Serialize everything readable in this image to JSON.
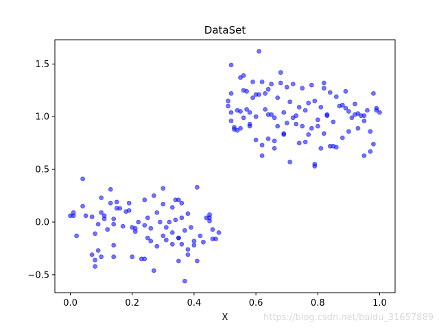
{
  "chart_data": {
    "type": "scatter",
    "title": "DataSet",
    "xlabel": "X",
    "ylabel": "",
    "xlim": [
      -0.05,
      1.05
    ],
    "ylim": [
      -0.67,
      1.73
    ],
    "x_ticks": [
      0.0,
      0.2,
      0.4,
      0.6,
      0.8,
      1.0
    ],
    "x_tick_labels": [
      "0.0",
      "0.2",
      "0.4",
      "0.6",
      "0.8",
      "1.0"
    ],
    "y_ticks": [
      -0.5,
      0.0,
      0.5,
      1.0,
      1.5
    ],
    "y_tick_labels": [
      "−0.5",
      "0.0",
      "0.5",
      "1.0",
      "1.5"
    ],
    "grid": false,
    "marker_color": "#0000ff",
    "marker_alpha": 0.55,
    "series": [
      {
        "points": [
          [
            0.0,
            0.06
          ],
          [
            0.01,
            0.09
          ],
          [
            0.01,
            0.06
          ],
          [
            0.02,
            -0.13
          ],
          [
            0.04,
            0.41
          ],
          [
            0.04,
            0.15
          ],
          [
            0.05,
            0.06
          ],
          [
            0.07,
            0.05
          ],
          [
            0.07,
            -0.31
          ],
          [
            0.08,
            -0.11
          ],
          [
            0.08,
            -0.36
          ],
          [
            0.08,
            -0.42
          ],
          [
            0.09,
            -0.27
          ],
          [
            0.09,
            -0.02
          ],
          [
            0.1,
            0.09
          ],
          [
            0.1,
            0.23
          ],
          [
            0.1,
            -0.33
          ],
          [
            0.11,
            0.06
          ],
          [
            0.11,
            0.03
          ],
          [
            0.12,
            -0.07
          ],
          [
            0.13,
            0.31
          ],
          [
            0.13,
            0.18
          ],
          [
            0.14,
            -0.33
          ],
          [
            0.14,
            -0.22
          ],
          [
            0.14,
            -0.02
          ],
          [
            0.14,
            0.03
          ],
          [
            0.15,
            0.19
          ],
          [
            0.15,
            0.13
          ],
          [
            0.16,
            0.13
          ],
          [
            0.17,
            -0.04
          ],
          [
            0.18,
            0.1
          ],
          [
            0.19,
            0.18
          ],
          [
            0.19,
            0.11
          ],
          [
            0.2,
            -0.33
          ],
          [
            0.2,
            -0.05
          ],
          [
            0.21,
            -0.06
          ],
          [
            0.21,
            -0.09
          ],
          [
            0.22,
            0.0
          ],
          [
            0.23,
            -0.35
          ],
          [
            0.24,
            -0.35
          ],
          [
            0.24,
            0.21
          ],
          [
            0.24,
            -0.03
          ],
          [
            0.25,
            0.04
          ],
          [
            0.25,
            -0.15
          ],
          [
            0.26,
            -0.06
          ],
          [
            0.26,
            -0.18
          ],
          [
            0.27,
            0.25
          ],
          [
            0.27,
            -0.46
          ],
          [
            0.28,
            0.09
          ],
          [
            0.28,
            -0.23
          ],
          [
            0.29,
            0.0
          ],
          [
            0.3,
            0.32
          ],
          [
            0.3,
            0.17
          ],
          [
            0.3,
            -0.13
          ],
          [
            0.31,
            -0.05
          ],
          [
            0.31,
            -0.17
          ],
          [
            0.32,
            0.0
          ],
          [
            0.33,
            -0.21
          ],
          [
            0.33,
            -0.1
          ],
          [
            0.33,
            0.14
          ],
          [
            0.34,
            0.02
          ],
          [
            0.34,
            0.21
          ],
          [
            0.35,
            0.21
          ],
          [
            0.35,
            -0.15
          ],
          [
            0.35,
            -0.37
          ],
          [
            0.35,
            -0.15
          ],
          [
            0.36,
            0.18
          ],
          [
            0.36,
            0.04
          ],
          [
            0.36,
            -0.21
          ],
          [
            0.37,
            -0.56
          ],
          [
            0.37,
            -0.08
          ],
          [
            0.38,
            -0.26
          ],
          [
            0.38,
            -0.31
          ],
          [
            0.38,
            0.08
          ],
          [
            0.39,
            -0.05
          ],
          [
            0.4,
            -0.22
          ],
          [
            0.4,
            -0.18
          ],
          [
            0.41,
            0.33
          ],
          [
            0.41,
            -0.37
          ],
          [
            0.42,
            -0.13
          ],
          [
            0.43,
            -0.19
          ],
          [
            0.44,
            0.04
          ],
          [
            0.45,
            0.04
          ],
          [
            0.45,
            0.07
          ],
          [
            0.45,
            0.01
          ],
          [
            0.46,
            -0.07
          ],
          [
            0.46,
            -0.16
          ],
          [
            0.47,
            -0.16
          ],
          [
            0.48,
            -0.1
          ]
        ]
      },
      {
        "points": [
          [
            0.51,
            1.1
          ],
          [
            0.51,
            1.15
          ],
          [
            0.52,
            1.49
          ],
          [
            0.52,
            1.22
          ],
          [
            0.52,
            1.04
          ],
          [
            0.52,
            0.96
          ],
          [
            0.53,
            0.88
          ],
          [
            0.53,
            0.9
          ],
          [
            0.54,
            1.06
          ],
          [
            0.54,
            0.87
          ],
          [
            0.55,
            0.89
          ],
          [
            0.55,
            1.37
          ],
          [
            0.55,
            1.05
          ],
          [
            0.56,
            1.39
          ],
          [
            0.56,
            1.25
          ],
          [
            0.56,
            0.99
          ],
          [
            0.57,
            1.07
          ],
          [
            0.57,
            1.24
          ],
          [
            0.58,
            0.91
          ],
          [
            0.58,
            1.04
          ],
          [
            0.58,
            0.93
          ],
          [
            0.59,
            1.33
          ],
          [
            0.59,
            1.18
          ],
          [
            0.6,
            1.0
          ],
          [
            0.6,
            1.21
          ],
          [
            0.6,
            0.78
          ],
          [
            0.61,
            1.21
          ],
          [
            0.61,
            1.62
          ],
          [
            0.62,
            1.33
          ],
          [
            0.62,
            0.73
          ],
          [
            0.62,
            0.63
          ],
          [
            0.63,
            1.07
          ],
          [
            0.63,
            1.22
          ],
          [
            0.64,
            1.26
          ],
          [
            0.64,
            1.02
          ],
          [
            0.64,
            0.79
          ],
          [
            0.65,
            1.31
          ],
          [
            0.65,
            1.02
          ],
          [
            0.66,
            0.99
          ],
          [
            0.66,
            0.7
          ],
          [
            0.66,
            0.77
          ],
          [
            0.67,
            0.91
          ],
          [
            0.67,
            1.18
          ],
          [
            0.68,
            1.32
          ],
          [
            0.68,
            1.42
          ],
          [
            0.69,
            0.83
          ],
          [
            0.69,
            0.84
          ],
          [
            0.69,
            1.04
          ],
          [
            0.7,
            1.28
          ],
          [
            0.7,
            0.94
          ],
          [
            0.71,
            0.57
          ],
          [
            0.71,
            1.14
          ],
          [
            0.72,
            1.31
          ],
          [
            0.72,
            0.99
          ],
          [
            0.73,
            1.01
          ],
          [
            0.73,
            0.93
          ],
          [
            0.74,
            1.09
          ],
          [
            0.74,
            0.75
          ],
          [
            0.75,
            0.91
          ],
          [
            0.75,
            1.27
          ],
          [
            0.76,
            0.76
          ],
          [
            0.76,
            1.06
          ],
          [
            0.77,
            1.13
          ],
          [
            0.77,
            0.83
          ],
          [
            0.78,
            0.89
          ],
          [
            0.78,
            1.3
          ],
          [
            0.79,
            1.15
          ],
          [
            0.79,
            0.55
          ],
          [
            0.79,
            0.53
          ],
          [
            0.8,
            0.97
          ],
          [
            0.8,
            0.91
          ],
          [
            0.81,
            0.7
          ],
          [
            0.81,
            1.09
          ],
          [
            0.82,
            1.32
          ],
          [
            0.82,
            1.27
          ],
          [
            0.82,
            0.84
          ],
          [
            0.83,
            1.01
          ],
          [
            0.83,
            1.02
          ],
          [
            0.84,
            1.23
          ],
          [
            0.84,
            0.72
          ],
          [
            0.85,
            0.72
          ],
          [
            0.85,
            0.95
          ],
          [
            0.86,
            1.19
          ],
          [
            0.86,
            0.71
          ],
          [
            0.87,
            1.1
          ],
          [
            0.88,
            1.11
          ],
          [
            0.88,
            0.8
          ],
          [
            0.89,
            1.08
          ],
          [
            0.89,
            1.24
          ],
          [
            0.9,
            0.86
          ],
          [
            0.9,
            1.05
          ],
          [
            0.91,
            0.99
          ],
          [
            0.92,
            1.02
          ],
          [
            0.92,
            1.12
          ],
          [
            0.93,
            0.89
          ],
          [
            0.93,
            1.03
          ],
          [
            0.94,
            1.01
          ],
          [
            0.95,
            1.01
          ],
          [
            0.95,
            0.96
          ],
          [
            0.95,
            0.63
          ],
          [
            0.96,
            1.06
          ],
          [
            0.97,
            0.67
          ],
          [
            0.97,
            0.86
          ],
          [
            0.98,
            1.22
          ],
          [
            0.98,
            0.74
          ],
          [
            0.99,
            1.06
          ],
          [
            0.99,
            1.08
          ],
          [
            1.0,
            1.04
          ]
        ]
      }
    ]
  },
  "watermark": "https://blog.csdn.net/baidu_31657889"
}
